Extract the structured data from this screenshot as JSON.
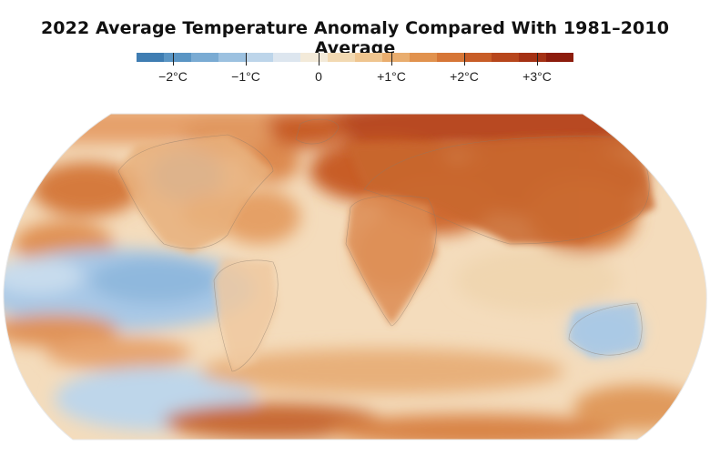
{
  "title": "2022 Average Temperature Anomaly Compared With 1981–2010 Average",
  "legend": {
    "colors": [
      "#3f7db2",
      "#5a95c4",
      "#7aabd3",
      "#9cc1e0",
      "#bdd5ea",
      "#dde6ef",
      "#f3ead9",
      "#f2d9b2",
      "#efc58f",
      "#e9ad6e",
      "#e1924e",
      "#d67637",
      "#c85d27",
      "#b7461c",
      "#a43114",
      "#8c1c0c"
    ],
    "ticks": [
      {
        "label": "−2°C",
        "value": -2
      },
      {
        "label": "−1°C",
        "value": -1
      },
      {
        "label": "0",
        "value": 0
      },
      {
        "label": "+1°C",
        "value": 1
      },
      {
        "label": "+2°C",
        "value": 2
      },
      {
        "label": "+3°C",
        "value": 3
      }
    ],
    "range": [
      -2.5,
      3.5
    ]
  }
}
